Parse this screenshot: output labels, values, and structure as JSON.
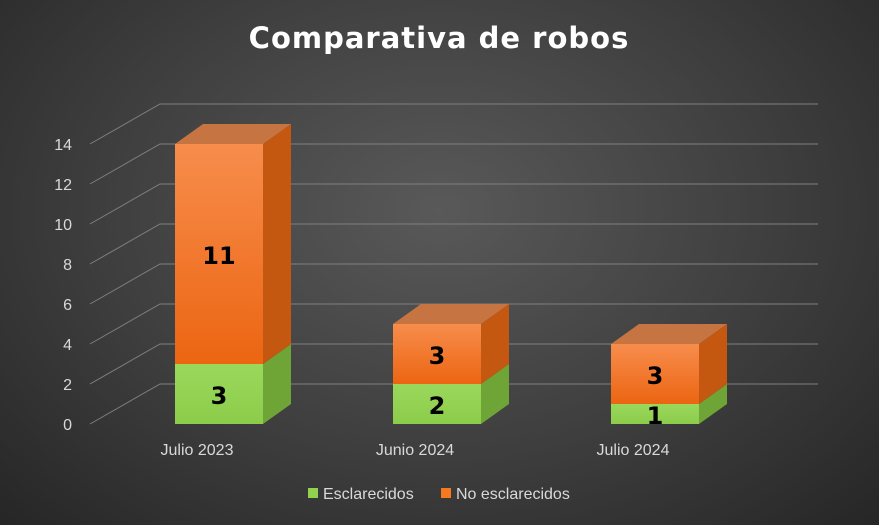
{
  "chart_data": {
    "type": "bar",
    "stacked": true,
    "three_d": true,
    "title": "Comparativa de robos",
    "categories": [
      "Julio 2023",
      "Junio 2024",
      "Julio 2024"
    ],
    "series": [
      {
        "name": "Esclarecidos",
        "values": [
          3,
          2,
          1
        ],
        "color": "#92d050"
      },
      {
        "name": "No esclarecidos",
        "values": [
          11,
          3,
          3
        ],
        "color": "#f47920"
      }
    ],
    "ylim": [
      0,
      14
    ],
    "yticks": [
      "0",
      "2",
      "4",
      "6",
      "8",
      "10",
      "12",
      "14"
    ],
    "ytick_values": [
      0,
      2,
      4,
      6,
      8,
      10,
      12,
      14
    ],
    "grid": true,
    "legend_position": "bottom",
    "colors": {
      "background": "#404040",
      "grid": "#7f7f7f",
      "text": "#d9d9d9"
    }
  }
}
